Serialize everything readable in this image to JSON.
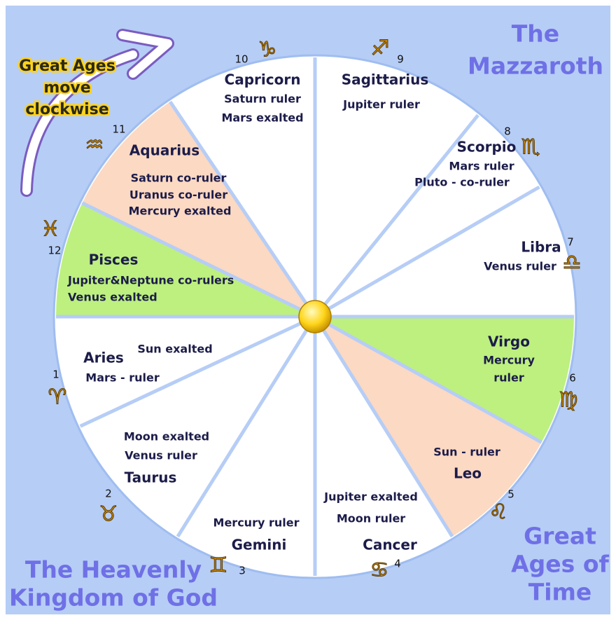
{
  "title": [
    "The",
    "Mazzaroth"
  ],
  "note": [
    "Great Ages",
    "move",
    "clockwise"
  ],
  "caption_left": [
    "The Heavenly",
    "Kingdom of God"
  ],
  "caption_right": [
    "Great",
    "Ages of",
    "Time"
  ],
  "signs": [
    {
      "number": "1",
      "symbol": "♈",
      "name": "Aries",
      "lines": [
        "Sun exalted",
        "Mars - ruler"
      ],
      "fill": "#ffffff"
    },
    {
      "number": "2",
      "symbol": "♉",
      "name": "Taurus",
      "lines": [
        "Moon exalted",
        "Venus ruler"
      ],
      "fill": "#ffffff"
    },
    {
      "number": "3",
      "symbol": "♊",
      "name": "Gemini",
      "lines": [
        "Mercury ruler"
      ],
      "fill": "#ffffff"
    },
    {
      "number": "4",
      "symbol": "♋",
      "name": "Cancer",
      "lines": [
        "Jupiter exalted",
        "Moon ruler"
      ],
      "fill": "#ffffff"
    },
    {
      "number": "5",
      "symbol": "♌",
      "name": "Leo",
      "lines": [
        "Sun - ruler"
      ],
      "fill": "#fcd9c2"
    },
    {
      "number": "6",
      "symbol": "♍",
      "name": "Virgo",
      "lines": [
        "Mercury",
        "ruler"
      ],
      "fill": "#bdf07f"
    },
    {
      "number": "7",
      "symbol": "♎",
      "name": "Libra",
      "lines": [
        "Venus ruler"
      ],
      "fill": "#ffffff"
    },
    {
      "number": "8",
      "symbol": "♏",
      "name": "Scorpio",
      "lines": [
        "Mars ruler",
        "Pluto - co-ruler"
      ],
      "fill": "#ffffff"
    },
    {
      "number": "9",
      "symbol": "♐",
      "name": "Sagittarius",
      "lines": [
        "Jupiter ruler"
      ],
      "fill": "#ffffff"
    },
    {
      "number": "10",
      "symbol": "♑",
      "name": "Capricorn",
      "lines": [
        "Saturn ruler",
        "Mars exalted"
      ],
      "fill": "#ffffff"
    },
    {
      "number": "11",
      "symbol": "♒",
      "name": "Aquarius",
      "lines": [
        "Saturn co-ruler",
        "Uranus co-ruler",
        "Mercury exalted"
      ],
      "fill": "#fcd9c2"
    },
    {
      "number": "12",
      "symbol": "♓",
      "name": "Pisces",
      "lines": [
        "Jupiter&Neptune co-rulers",
        "Venus exalted"
      ],
      "fill": "#bdf07f"
    }
  ]
}
